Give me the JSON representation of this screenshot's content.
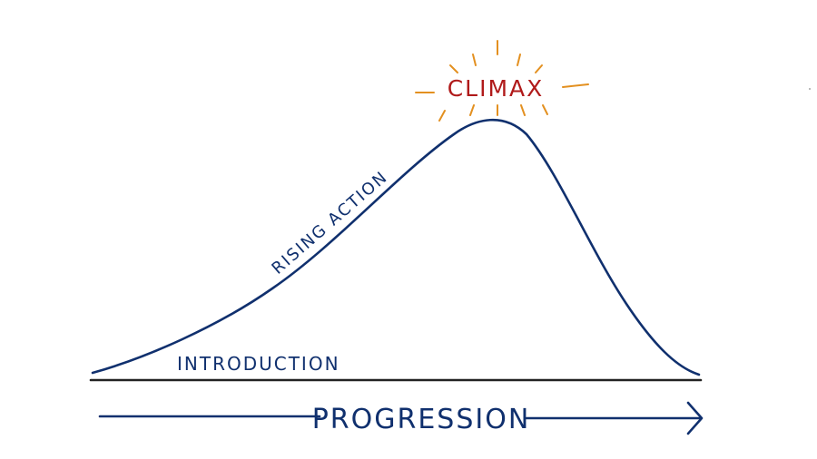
{
  "labels": {
    "climax": "CLIMAX",
    "rising_action": "RISING ACTION",
    "introduction": "INTRODUCTION",
    "progression": "PROGRESSION"
  },
  "colors": {
    "curve": "#10306e",
    "baseline": "#222222",
    "climax_text": "#b01a1a",
    "climax_rays": "#e39020"
  }
}
